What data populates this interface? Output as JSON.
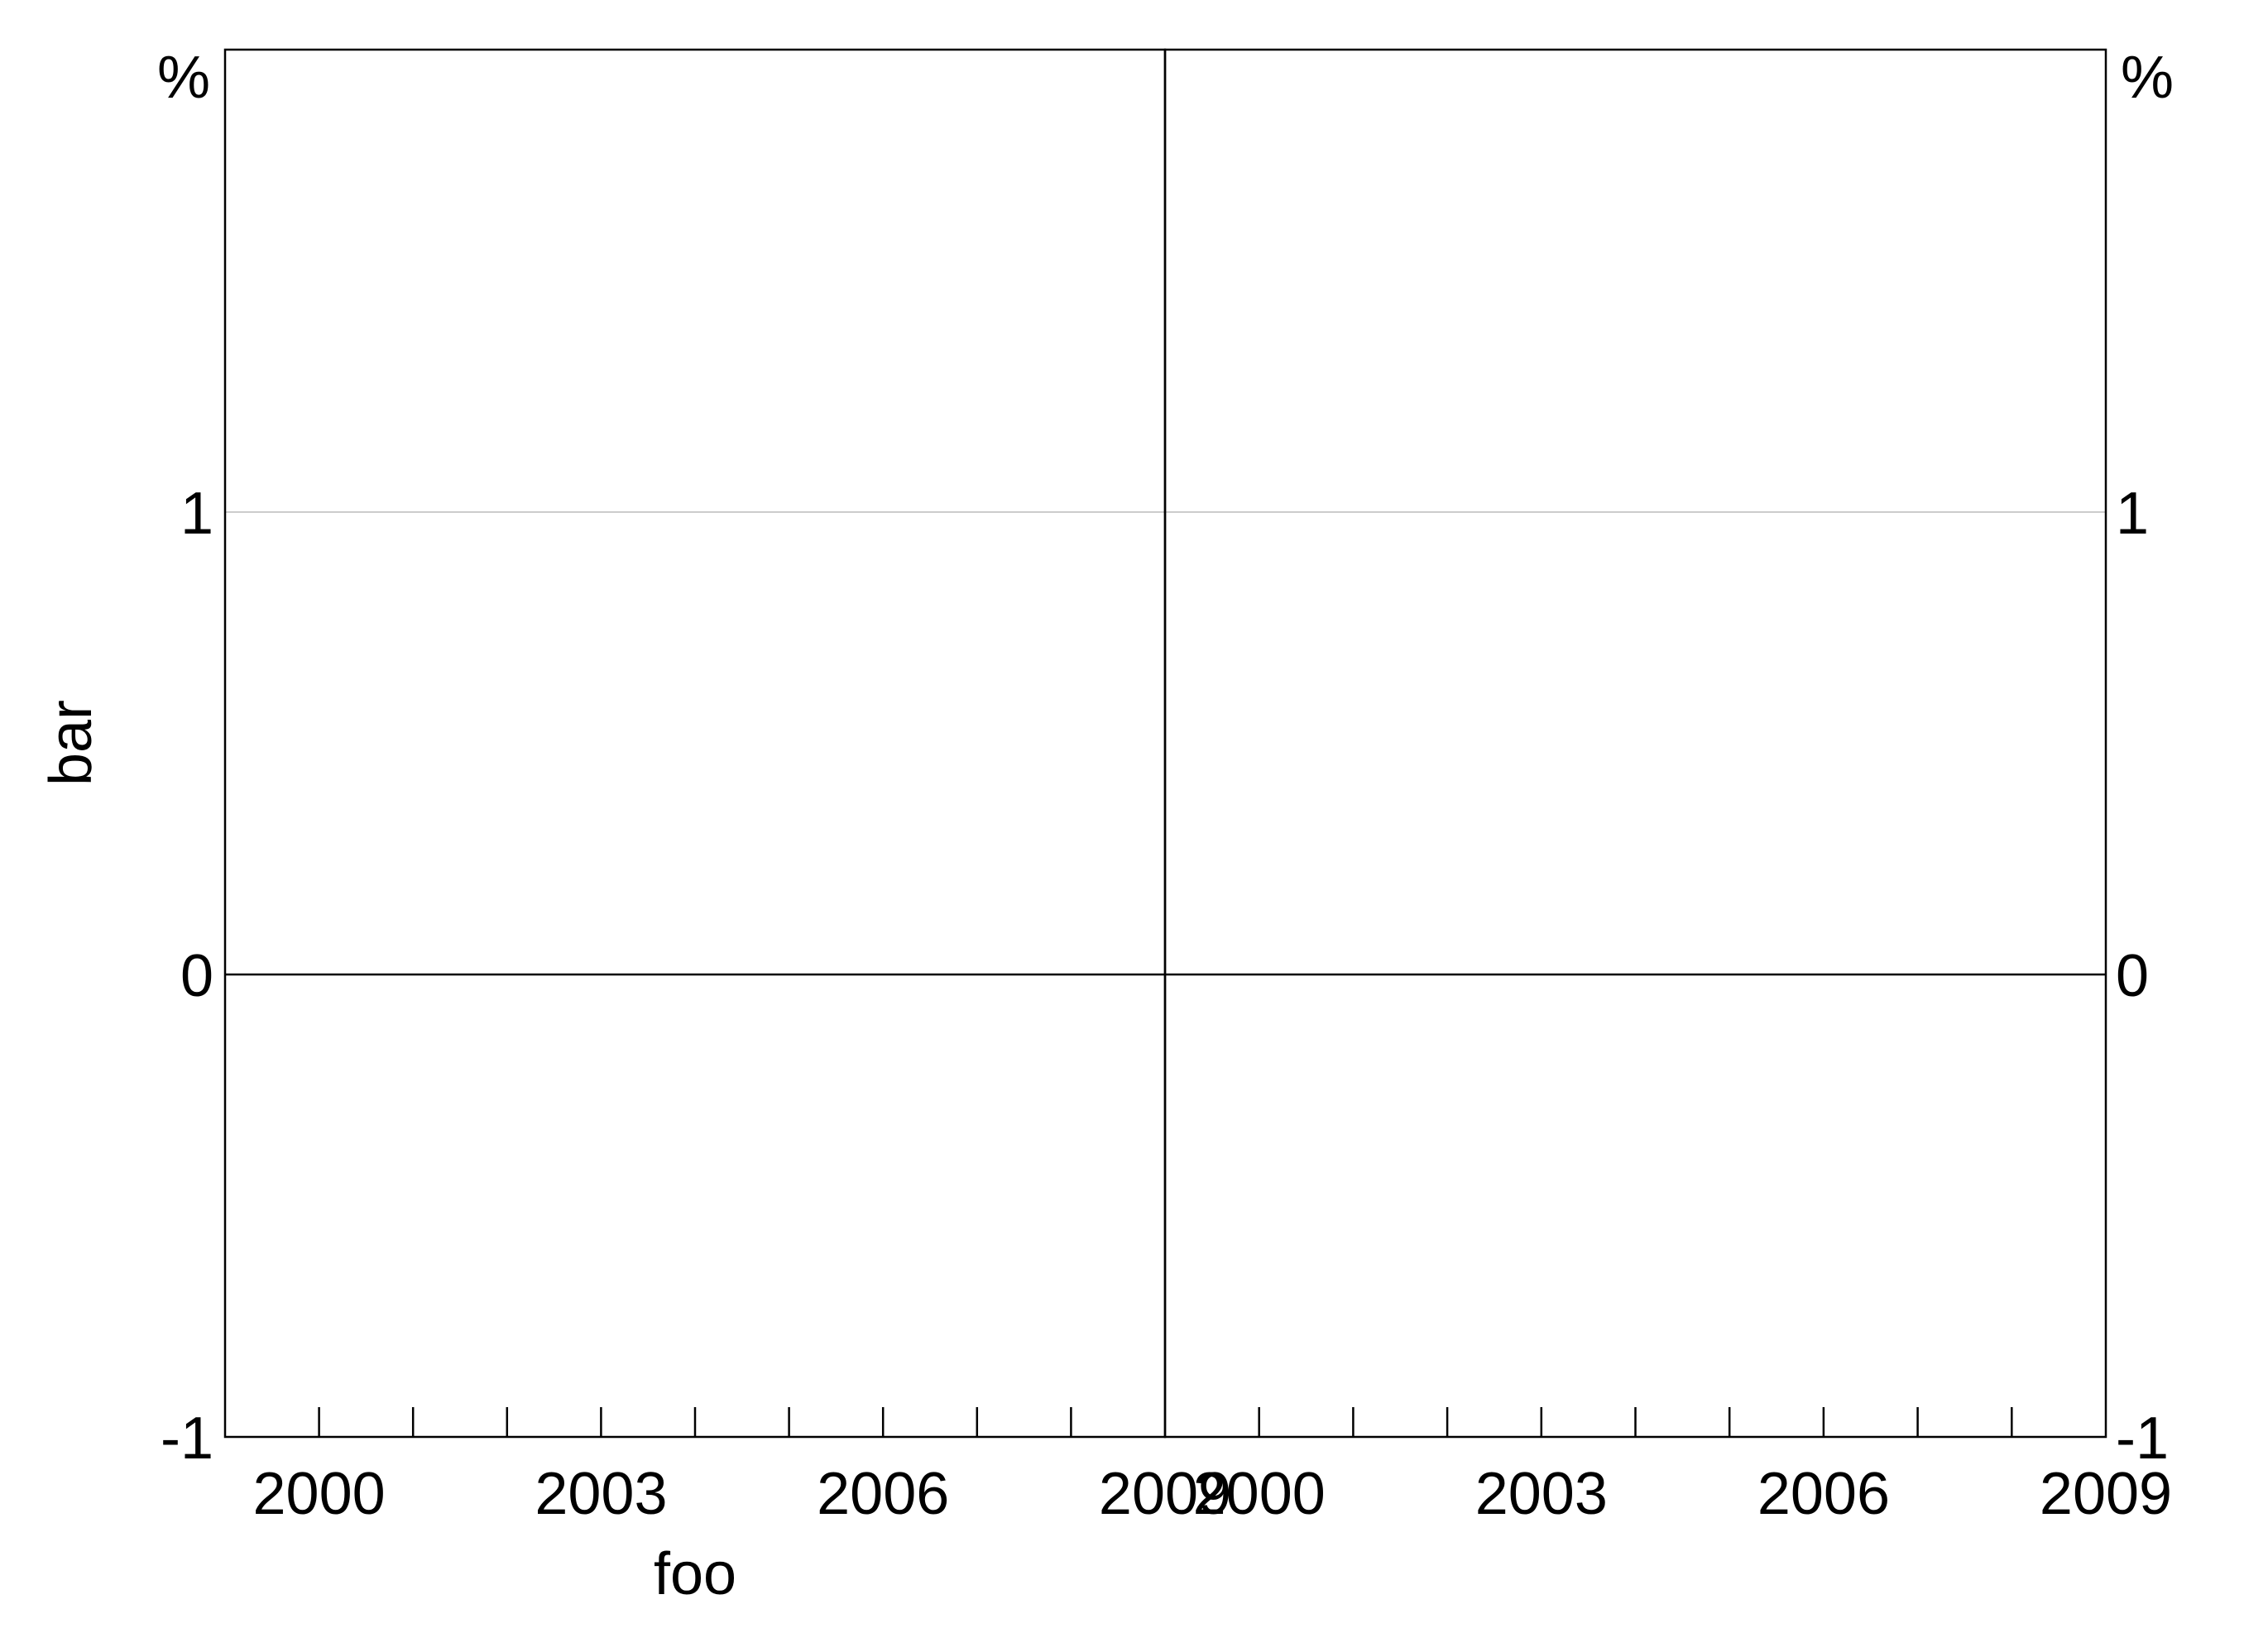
{
  "chart_data": {
    "type": "line",
    "layout": "two side-by-side panels sharing y axis (left and right tick labels)",
    "panels": [
      {
        "x_ticks": [
          "2000",
          "2003",
          "2006",
          "2009"
        ],
        "xlim": [
          1999,
          2009
        ],
        "minor_tick_step": 1,
        "xlabel": "foo",
        "series": []
      },
      {
        "x_ticks": [
          "2000",
          "2003",
          "2006",
          "2009"
        ],
        "xlim": [
          1999,
          2009
        ],
        "minor_tick_step": 1,
        "xlabel": "",
        "series": []
      }
    ],
    "y_ticks": [
      -1,
      0,
      1
    ],
    "ylim": [
      -1,
      2
    ],
    "ylabel": "bar",
    "y_unit_left": "%",
    "y_unit_right": "%",
    "zero_line": true,
    "gridlines_y": [
      1
    ],
    "grid_color": "#cccccc",
    "axis_color": "#000000"
  }
}
